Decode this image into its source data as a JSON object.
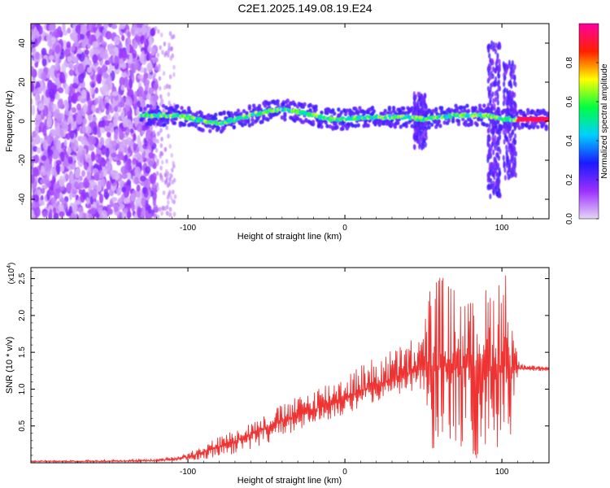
{
  "figure": {
    "title": "C2E1.2025.149.08.19.E24"
  },
  "chart_data": [
    {
      "type": "heatmap",
      "title": "C2E1.2025.149.08.19.E24",
      "xlabel": "Height of straight line (km)",
      "ylabel": "Frequency (Hz)",
      "xlim": [
        -200,
        130
      ],
      "ylim": [
        -50,
        50
      ],
      "xticks": [
        -100,
        0,
        100
      ],
      "yticks": [
        -40,
        -20,
        0,
        20,
        40
      ],
      "colorbar": {
        "label": "Normalized spectral amplitude",
        "range": [
          0,
          1
        ],
        "ticks": [
          "0.0",
          "0.2",
          "0.4",
          "0.6",
          "0.8"
        ],
        "colors": [
          "#e6d6f6",
          "#9b30ff",
          "#1a1aff",
          "#00d0ff",
          "#00ff40",
          "#ffff00",
          "#ff2000",
          "#ff00a0"
        ]
      },
      "dominant_frequency_track": {
        "x": [
          -130,
          -120,
          -110,
          -100,
          -90,
          -80,
          -70,
          -60,
          -50,
          -40,
          -30,
          -20,
          -10,
          0,
          10,
          20,
          30,
          40,
          50,
          60,
          70,
          80,
          90,
          100,
          110,
          120,
          130
        ],
        "y": [
          3,
          3,
          3,
          2,
          0,
          -1,
          1,
          3,
          5,
          6,
          5,
          3,
          1,
          1,
          2,
          2,
          2,
          2,
          1,
          2,
          3,
          3,
          3,
          1,
          1,
          1,
          1
        ]
      },
      "series": [
        {
          "values": [
            -200,
            -100,
            100
          ]
        }
      ]
    },
    {
      "type": "line",
      "xlabel": "Height of straight line (km)",
      "ylabel": "SNR (10 * v/v)",
      "y_multiplier": "(x10^4)",
      "xlim": [
        -200,
        130
      ],
      "ylim": [
        0,
        2.65
      ],
      "xticks": [
        -100,
        0,
        100
      ],
      "yticks": [
        0.5,
        1.0,
        1.5,
        2.0,
        2.5
      ],
      "line_color": "#ee3333",
      "envelope": {
        "x": [
          -200,
          -150,
          -120,
          -110,
          -100,
          -90,
          -80,
          -70,
          -60,
          -50,
          -40,
          -30,
          -20,
          -10,
          0,
          10,
          20,
          30,
          40,
          50,
          55,
          60,
          70,
          80,
          90,
          100,
          105,
          110,
          115,
          120,
          130
        ],
        "mean": [
          0.02,
          0.02,
          0.03,
          0.05,
          0.08,
          0.15,
          0.22,
          0.3,
          0.38,
          0.48,
          0.56,
          0.64,
          0.72,
          0.8,
          0.88,
          0.96,
          1.04,
          1.12,
          1.2,
          1.28,
          1.3,
          1.32,
          1.3,
          1.3,
          1.3,
          1.32,
          1.3,
          1.28,
          1.28,
          1.28,
          1.28
        ],
        "max": [
          0.03,
          0.04,
          0.05,
          0.08,
          0.14,
          0.26,
          0.36,
          0.46,
          0.56,
          0.66,
          0.8,
          0.9,
          1.02,
          1.12,
          1.22,
          1.34,
          1.45,
          1.55,
          1.66,
          1.8,
          2.6,
          2.6,
          2.4,
          2.2,
          2.4,
          2.65,
          2.65,
          1.4,
          1.32,
          1.32,
          1.3
        ],
        "min": [
          0.01,
          0.01,
          0.01,
          0.02,
          0.03,
          0.05,
          0.08,
          0.12,
          0.18,
          0.26,
          0.34,
          0.42,
          0.5,
          0.58,
          0.66,
          0.74,
          0.82,
          0.9,
          0.96,
          1.0,
          0.1,
          0.1,
          0.08,
          0.05,
          0.05,
          0.1,
          0.2,
          1.2,
          1.22,
          1.24,
          1.24
        ]
      }
    }
  ]
}
